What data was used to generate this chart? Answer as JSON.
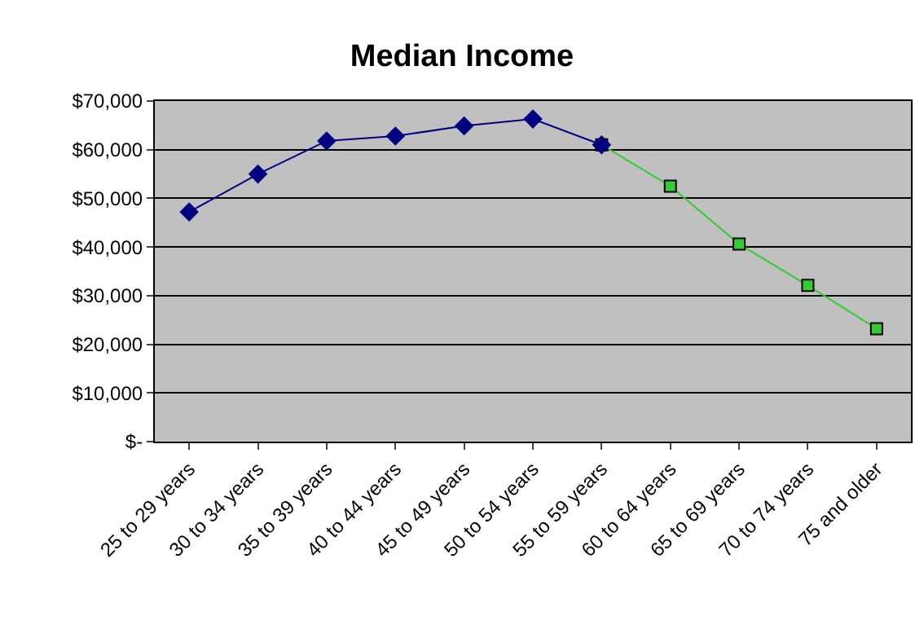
{
  "chart_data": {
    "type": "line",
    "title": "Median Income",
    "categories": [
      "25 to 29 years",
      "30 to 34 years",
      "35 to 39 years",
      "40 to 44 years",
      "45 to 49 years",
      "50 to 54 years",
      "55 to 59 years",
      "60 to 64 years",
      "65 to 69 years",
      "70 to 74 years",
      "75 and older"
    ],
    "series": [
      {
        "color": "#33cc33",
        "marker": "square",
        "values": [
          null,
          null,
          null,
          null,
          null,
          null,
          61000,
          52500,
          40600,
          32100,
          23200
        ]
      },
      {
        "color": "#000080",
        "marker": "diamond",
        "values": [
          47200,
          55000,
          61800,
          62800,
          64900,
          66300,
          61000,
          null,
          null,
          null,
          null
        ]
      }
    ],
    "ylim": [
      0,
      70000
    ],
    "yticks": [
      {
        "value": 0,
        "label": "$-"
      },
      {
        "value": 10000,
        "label": "$10,000"
      },
      {
        "value": 20000,
        "label": "$20,000"
      },
      {
        "value": 30000,
        "label": "$30,000"
      },
      {
        "value": 40000,
        "label": "$40,000"
      },
      {
        "value": 50000,
        "label": "$50,000"
      },
      {
        "value": 60000,
        "label": "$60,000"
      },
      {
        "value": 70000,
        "label": "$70,000"
      }
    ],
    "grid": "y"
  }
}
